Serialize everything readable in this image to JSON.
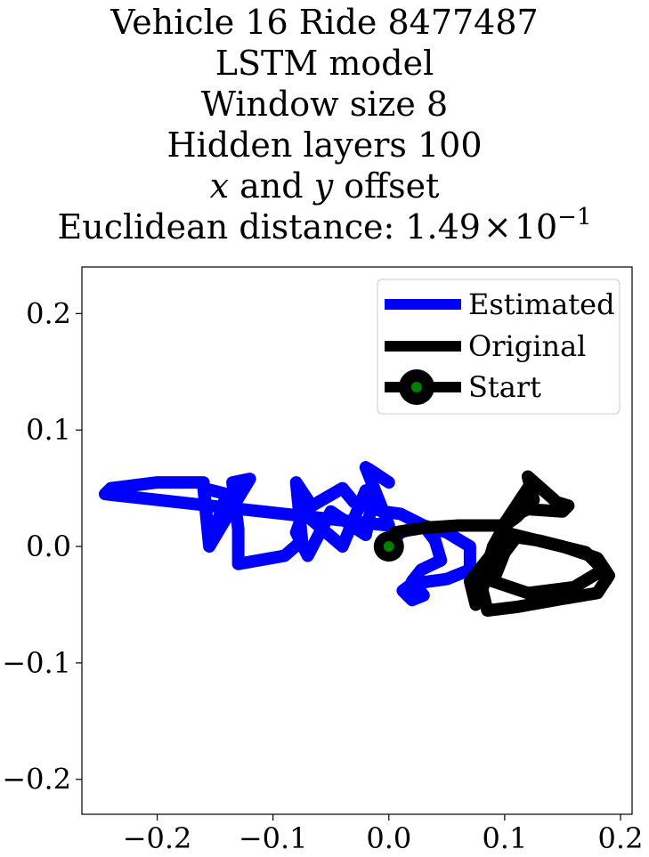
{
  "chart_data": {
    "type": "line",
    "title_lines": [
      "Vehicle 16 Ride 8477487",
      "LSTM model",
      "Window size 8",
      "Hidden layers 100"
    ],
    "offset_line": {
      "x_var": "x",
      "and_text": " and ",
      "y_var": "y",
      "suffix": " offset"
    },
    "distance_line": {
      "prefix": "Euclidean distance: ",
      "mantissa": "1.49",
      "times": "×",
      "base": "10",
      "exponent": "−1"
    },
    "xlim": [
      -0.265,
      0.21
    ],
    "ylim": [
      -0.23,
      0.24
    ],
    "x_ticks": [
      {
        "value": -0.2,
        "label": "−0.2"
      },
      {
        "value": -0.1,
        "label": "−0.1"
      },
      {
        "value": 0.0,
        "label": "0.0"
      },
      {
        "value": 0.1,
        "label": "0.1"
      },
      {
        "value": 0.2,
        "label": "0.2"
      }
    ],
    "y_ticks": [
      {
        "value": 0.2,
        "label": "0.2"
      },
      {
        "value": 0.1,
        "label": "0.1"
      },
      {
        "value": 0.0,
        "label": "0.0"
      },
      {
        "value": -0.1,
        "label": "−0.1"
      },
      {
        "value": -0.2,
        "label": "−0.2"
      }
    ],
    "grid": false,
    "legend_position": "top-right",
    "series": [
      {
        "name": "Estimated",
        "color": "#0000ff",
        "points": [
          [
            0.0,
            0.0
          ],
          [
            0.01,
            0.012
          ],
          [
            0.03,
            0.018
          ],
          [
            0.05,
            0.012
          ],
          [
            0.07,
            0.0
          ],
          [
            0.07,
            -0.02
          ],
          [
            0.05,
            -0.028
          ],
          [
            0.02,
            -0.032
          ],
          [
            0.012,
            -0.038
          ],
          [
            0.02,
            -0.046
          ],
          [
            0.03,
            -0.042
          ],
          [
            0.02,
            -0.03
          ],
          [
            0.028,
            -0.02
          ],
          [
            0.045,
            -0.012
          ],
          [
            0.04,
            0.005
          ],
          [
            0.03,
            0.018
          ],
          [
            0.01,
            0.028
          ],
          [
            -0.005,
            0.03
          ],
          [
            -0.03,
            0.038
          ],
          [
            -0.04,
            0.05
          ],
          [
            -0.075,
            0.03
          ],
          [
            -0.04,
            0.0
          ],
          [
            -0.02,
            0.048
          ],
          [
            -0.015,
            0.035
          ],
          [
            -0.02,
            0.01
          ],
          [
            -0.05,
            0.03
          ],
          [
            -0.07,
            -0.008
          ],
          [
            -0.08,
            0.012
          ],
          [
            -0.07,
            0.04
          ],
          [
            -0.08,
            0.055
          ],
          [
            -0.075,
            0.005
          ],
          [
            -0.09,
            -0.008
          ],
          [
            -0.13,
            -0.015
          ],
          [
            -0.13,
            0.015
          ],
          [
            -0.135,
            0.055
          ],
          [
            -0.12,
            0.058
          ],
          [
            -0.14,
            0.025
          ],
          [
            -0.155,
            -0.0
          ],
          [
            -0.14,
            0.045
          ],
          [
            -0.16,
            0.05
          ],
          [
            -0.155,
            -0.0
          ],
          [
            -0.16,
            0.055
          ],
          [
            -0.2,
            0.055
          ],
          [
            -0.24,
            0.05
          ],
          [
            -0.245,
            0.045
          ],
          [
            0.0,
            0.018
          ],
          [
            -0.02,
            0.068
          ],
          [
            -0.015,
            0.065
          ],
          [
            0.0,
            0.055
          ]
        ]
      },
      {
        "name": "Original",
        "color": "#000000",
        "points": [
          [
            0.0,
            0.0
          ],
          [
            0.005,
            0.012
          ],
          [
            0.03,
            0.016
          ],
          [
            0.06,
            0.018
          ],
          [
            0.1,
            0.018
          ],
          [
            0.11,
            0.025
          ],
          [
            0.125,
            0.04
          ],
          [
            0.12,
            0.06
          ],
          [
            0.145,
            0.038
          ],
          [
            0.155,
            0.035
          ],
          [
            0.15,
            0.03
          ],
          [
            0.12,
            0.032
          ],
          [
            0.105,
            0.025
          ],
          [
            0.1,
            0.018
          ],
          [
            0.09,
            0.0
          ],
          [
            0.08,
            -0.035
          ],
          [
            0.085,
            -0.055
          ],
          [
            0.11,
            -0.052
          ],
          [
            0.15,
            -0.045
          ],
          [
            0.18,
            -0.04
          ],
          [
            0.19,
            -0.025
          ],
          [
            0.18,
            -0.01
          ],
          [
            0.15,
            0.0
          ],
          [
            0.13,
            0.005
          ],
          [
            0.11,
            0.008
          ],
          [
            0.1,
            -0.005
          ],
          [
            0.09,
            -0.03
          ],
          [
            0.12,
            -0.04
          ],
          [
            0.16,
            -0.035
          ],
          [
            0.185,
            -0.02
          ],
          [
            0.17,
            -0.005
          ],
          [
            0.1,
            0.012
          ],
          [
            0.075,
            -0.05
          ],
          [
            0.07,
            -0.03
          ],
          [
            0.09,
            -0.005
          ],
          [
            0.1,
            0.02
          ],
          [
            0.12,
            0.05
          ]
        ]
      }
    ],
    "start": {
      "name": "Start",
      "x": 0.0,
      "y": 0.0,
      "marker_color": "#008000",
      "edge_color": "#000000"
    }
  }
}
